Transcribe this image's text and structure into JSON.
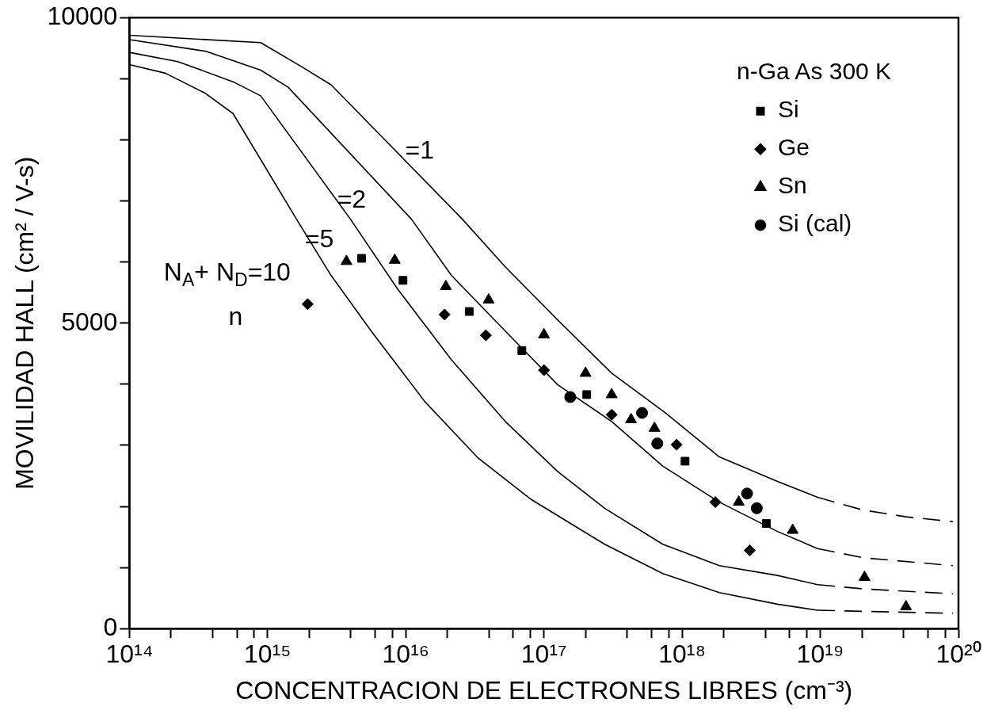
{
  "chart_data": {
    "type": "scatter",
    "xlabel": "CONCENTRACION DE ELECTRONES LIBRES (cm⁻³)",
    "ylabel": "MOVILIDAD HALL (cm² / V-s)",
    "legend_title": "n-Ga As 300 K",
    "legend": "top right",
    "log": "x",
    "grid": false,
    "xlim": [
      100000000000000.0,
      1e+20
    ],
    "xticks": [
      {
        "value": 100000000000000.0,
        "label": "10¹⁴"
      },
      {
        "value": 200000000000000.0,
        "label": null
      },
      {
        "value": 400000000000000.0,
        "label": null
      },
      {
        "value": 600000000000000.0,
        "label": null
      },
      {
        "value": 800000000000000.0,
        "label": null
      },
      {
        "value": 1000000000000000.0,
        "label": "10¹⁵"
      },
      {
        "value": 2000000000000000.0,
        "label": null
      },
      {
        "value": 4000000000000000.0,
        "label": null
      },
      {
        "value": 6000000000000000.0,
        "label": null
      },
      {
        "value": 8000000000000000.0,
        "label": null
      },
      {
        "value": 1e+16,
        "label": "10¹⁶"
      },
      {
        "value": 2e+16,
        "label": null
      },
      {
        "value": 4e+16,
        "label": null
      },
      {
        "value": 6e+16,
        "label": null
      },
      {
        "value": 8e+16,
        "label": null
      },
      {
        "value": 1e+17,
        "label": "10¹⁷"
      },
      {
        "value": 2e+17,
        "label": null
      },
      {
        "value": 4e+17,
        "label": null
      },
      {
        "value": 6e+17,
        "label": null
      },
      {
        "value": 8e+17,
        "label": null
      },
      {
        "value": 1e+18,
        "label": "10¹⁸"
      },
      {
        "value": 2e+18,
        "label": null
      },
      {
        "value": 4e+18,
        "label": null
      },
      {
        "value": 6e+18,
        "label": null
      },
      {
        "value": 8e+18,
        "label": null
      },
      {
        "value": 1e+19,
        "label": "10¹⁹"
      },
      {
        "value": 2e+19,
        "label": null
      },
      {
        "value": 4e+19,
        "label": null
      },
      {
        "value": 6e+19,
        "label": null
      },
      {
        "value": 8e+19,
        "label": null
      },
      {
        "value": 1e+20,
        "label": "10²⁰"
      }
    ],
    "ylim": [
      0,
      10000
    ],
    "yticks": [
      0,
      {
        "value": 1000,
        "label": null
      },
      {
        "value": 2000,
        "label": null
      },
      {
        "value": 3000,
        "label": null
      },
      {
        "value": 4000,
        "label": null
      },
      5000,
      {
        "value": 6000,
        "label": null
      },
      {
        "value": 7000,
        "label": null
      },
      {
        "value": 8000,
        "label": null
      },
      {
        "value": 9000,
        "label": null
      },
      10000
    ],
    "series": [
      {
        "name": "Si",
        "marker": "square",
        "color": "#000000",
        "x": [
          4790000000000000.0,
          9550000000000000.0,
          2.88e+16,
          6.92e+16,
          2.04e+17,
          1.05e+18,
          4.07e+18
        ],
        "values": [
          6060,
          5700,
          5190,
          4550,
          3830,
          2740,
          1720
        ]
      },
      {
        "name": "Ge",
        "marker": "diamond",
        "color": "#000000",
        "x": [
          1950000000000000.0,
          1.91e+16,
          3.8e+16,
          1e+17,
          3.09e+17,
          9.12e+17,
          1.74e+18,
          3.09e+18
        ],
        "values": [
          5310,
          5140,
          4800,
          4230,
          3500,
          3010,
          2070,
          1280
        ]
      },
      {
        "name": "Sn",
        "marker": "triangle",
        "color": "#000000",
        "x": [
          3720000000000000.0,
          8320000000000000.0,
          1.95e+16,
          3.98e+16,
          1e+17,
          2e+17,
          3.09e+17,
          4.27e+17,
          6.31e+17,
          2.57e+18,
          6.31e+18,
          2.09e+19,
          4.17e+19
        ],
        "values": [
          6010,
          6030,
          5600,
          5380,
          4810,
          4180,
          3830,
          3420,
          3280,
          2070,
          1610,
          840,
          360
        ]
      },
      {
        "name": "Si (cal)",
        "marker": "circle",
        "color": "#000000",
        "x": [
          1.55e+17,
          5.13e+17,
          6.61e+17,
          2.95e+18,
          3.47e+18
        ],
        "values": [
          3790,
          3530,
          3030,
          2210,
          1970
        ]
      },
      {
        "type": "line",
        "marker": "none",
        "line_style": "solid",
        "color": "#000000",
        "x": [
          100000000000000.0,
          891000000000000.0,
          1780000000000000.0,
          2880000000000000.0,
          2.57e+16,
          5.25e+16,
          1.26e+17,
          3.09e+17,
          7.59e+17,
          1.86e+18,
          4.9e+18,
          9.55e+18
        ],
        "values": [
          9710,
          9590,
          9190,
          8900,
          6700,
          5920,
          5050,
          4180,
          3530,
          2810,
          2410,
          2150
        ]
      },
      {
        "type": "line",
        "marker": "none",
        "line_style": "dashed",
        "color": "#000000",
        "x": [
          9.55e+18,
          2.04e+19,
          4.17e+19,
          9.12e+19
        ],
        "values": [
          2150,
          1940,
          1830,
          1750
        ]
      },
      {
        "type": "line",
        "marker": "none",
        "line_style": "solid",
        "color": "#000000",
        "x": [
          100000000000000.0,
          355000000000000.0,
          891000000000000.0,
          1410000000000000.0,
          1.1e+16,
          2.14e+16,
          5.25e+16,
          1.26e+17,
          3.09e+17,
          7.24e+17,
          1.86e+18,
          4.9e+18,
          9.55e+18
        ],
        "values": [
          9640,
          9450,
          9140,
          8860,
          6700,
          5780,
          4870,
          3990,
          3390,
          2660,
          2070,
          1590,
          1310
        ]
      },
      {
        "type": "line",
        "marker": "none",
        "line_style": "dashed",
        "color": "#000000",
        "x": [
          9.55e+18,
          2.04e+19,
          9.12e+19
        ],
        "values": [
          1310,
          1160,
          1030
        ]
      },
      {
        "type": "line",
        "marker": "none",
        "line_style": "solid",
        "color": "#000000",
        "x": [
          100000000000000.0,
          224000000000000.0,
          562000000000000.0,
          891000000000000.0,
          3980000000000000.0,
          8710000000000000.0,
          2.14e+16,
          5.25e+16,
          1.26e+17,
          2.75e+17,
          7.24e+17,
          1.86e+18,
          4.9e+18,
          9.55e+18
        ],
        "values": [
          9430,
          9280,
          8950,
          8720,
          6700,
          5560,
          4400,
          3390,
          2570,
          1970,
          1380,
          1030,
          870,
          720
        ]
      },
      {
        "type": "line",
        "marker": "none",
        "line_style": "dashed",
        "color": "#000000",
        "x": [
          9.55e+18,
          2.04e+19,
          9.12e+19
        ],
        "values": [
          720,
          650,
          570
        ]
      },
      {
        "type": "line",
        "marker": "none",
        "line_style": "solid",
        "color": "#000000",
        "x": [
          100000000000000.0,
          182000000000000.0,
          355000000000000.0,
          562000000000000.0,
          1620000000000000.0,
          2880000000000000.0,
          5620000000000000.0,
          1.38e+16,
          3.31e+16,
          8.13e+16,
          2.75e+17,
          7.24e+17,
          1.86e+18,
          4.9e+18,
          9.55e+18
        ],
        "values": [
          9230,
          9090,
          8760,
          8430,
          6700,
          5780,
          4870,
          3710,
          2800,
          2110,
          1380,
          900,
          590,
          400,
          300
        ]
      },
      {
        "type": "line",
        "marker": "none",
        "line_style": "dashed",
        "color": "#000000",
        "x": [
          9.55e+18,
          9.12e+19
        ],
        "values": [
          300,
          250
        ]
      }
    ],
    "annotations": [
      "=1",
      "=2",
      "=5",
      "N$_{A}$+ N$_{D}$=10",
      "n"
    ]
  }
}
